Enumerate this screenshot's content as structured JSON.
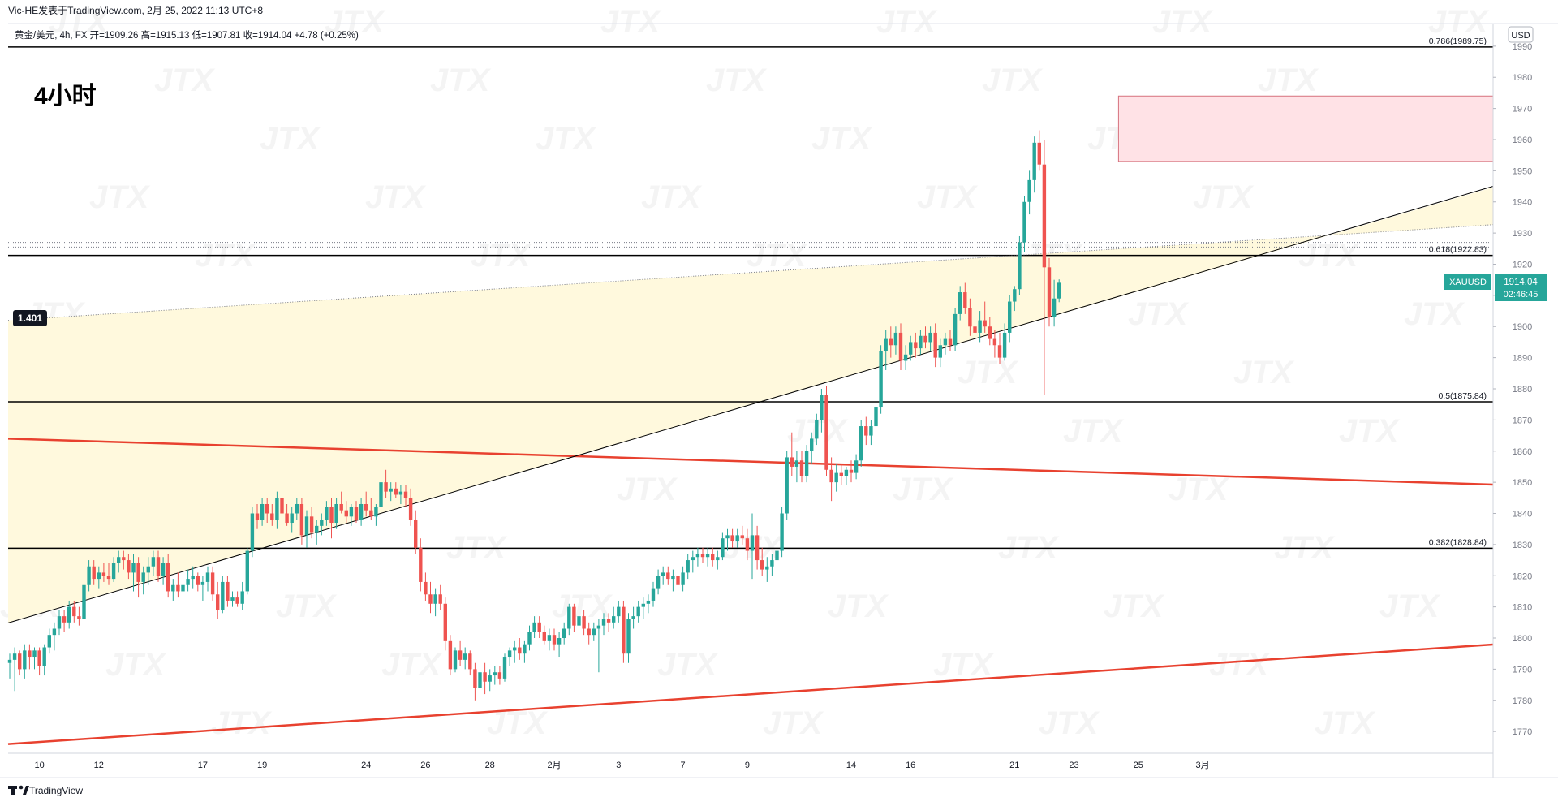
{
  "header": {
    "publisher": "Vic-HE发表于TradingView.com,  2月 25, 2022 11:13 UTC+8",
    "instrument_line": "黄金/美元, 4h, FX  开=1909.26  高=1915.13  低=1907.81  收=1914.04  +4.78 (+0.25%)"
  },
  "overlay": {
    "timeframe_label": "4小时",
    "watermark": "JTX"
  },
  "price_axis": {
    "currency": "USD"
  },
  "last_price": {
    "symbol": "XAUUSD",
    "price": "1914.04",
    "countdown": "02:46:45"
  },
  "footer": {
    "brand": "TradingView"
  },
  "colors": {
    "up": "#26a69a",
    "down": "#ef5350",
    "trendline_red": "#e8412f",
    "zone_fill": "#fff9dd",
    "supply_fill": "#ffe2e6",
    "supply_stroke": "#d6727d"
  },
  "chart_data": {
    "type": "candlestick",
    "title": "黄金/美元, 4h, FX",
    "ylim": [
      1763,
      1997
    ],
    "yticks": [
      1770,
      1780,
      1790,
      1800,
      1810,
      1820,
      1830,
      1840,
      1850,
      1860,
      1870,
      1880,
      1890,
      1900,
      1910,
      1920,
      1930,
      1940,
      1950,
      1960,
      1970,
      1980,
      1990
    ],
    "xticks": [
      {
        "label": "10",
        "x": 6
      },
      {
        "label": "12",
        "x": 18
      },
      {
        "label": "17",
        "x": 39
      },
      {
        "label": "19",
        "x": 51
      },
      {
        "label": "24",
        "x": 72
      },
      {
        "label": "26",
        "x": 84
      },
      {
        "label": "28",
        "x": 97
      },
      {
        "label": "2月",
        "x": 110
      },
      {
        "label": "3",
        "x": 123
      },
      {
        "label": "7",
        "x": 136
      },
      {
        "label": "9",
        "x": 149
      },
      {
        "label": "14",
        "x": 170
      },
      {
        "label": "16",
        "x": 182
      },
      {
        "label": "21",
        "x": 203
      },
      {
        "label": "23",
        "x": 215
      },
      {
        "label": "25",
        "x": 228
      },
      {
        "label": "3月",
        "x": 241
      }
    ],
    "fib_levels": [
      {
        "label": "0.786(1989.75)",
        "price": 1989.75
      },
      {
        "label": "0.618(1922.83)",
        "price": 1922.83
      },
      {
        "label": "0.5(1875.84)",
        "price": 1875.84
      },
      {
        "label": "0.382(1828.84)",
        "price": 1828.84
      }
    ],
    "flag_label": "1.401",
    "trendlines": [
      {
        "name": "upper_red",
        "from": {
          "x": 0,
          "y": 1864
        },
        "to": {
          "x": 244,
          "y": 1852
        }
      },
      {
        "name": "lower_red",
        "from": {
          "x": 0,
          "y": 1766
        },
        "to": {
          "x": 244,
          "y": 1792
        }
      },
      {
        "name": "rising_support",
        "from": {
          "x": 0,
          "y": 1805
        },
        "to": {
          "x": 244,
          "y": 1919
        }
      },
      {
        "name": "dotted_upper",
        "from": {
          "x": 0,
          "y": 1902
        },
        "to": {
          "x": 244,
          "y": 1927
        }
      }
    ],
    "horizontal_dotted": [
      1925.5,
      1927
    ],
    "supply_zone": {
      "x_start": 224,
      "x_end": 244,
      "y_low": 1953,
      "y_high": 1974
    },
    "candles": [
      [
        1792,
        1795,
        1787,
        1793
      ],
      [
        1793,
        1797,
        1783,
        1795
      ],
      [
        1795,
        1796,
        1788,
        1790
      ],
      [
        1790,
        1798,
        1787,
        1796
      ],
      [
        1796,
        1798,
        1790,
        1794
      ],
      [
        1794,
        1797,
        1790,
        1796
      ],
      [
        1796,
        1797,
        1788,
        1791
      ],
      [
        1791,
        1798,
        1788,
        1797
      ],
      [
        1797,
        1803,
        1795,
        1801
      ],
      [
        1801,
        1805,
        1796,
        1803
      ],
      [
        1803,
        1809,
        1801,
        1807
      ],
      [
        1807,
        1809,
        1802,
        1805
      ],
      [
        1805,
        1812,
        1803,
        1810
      ],
      [
        1810,
        1812,
        1805,
        1807
      ],
      [
        1807,
        1810,
        1804,
        1806
      ],
      [
        1806,
        1818,
        1805,
        1817
      ],
      [
        1817,
        1825,
        1815,
        1823
      ],
      [
        1823,
        1825,
        1817,
        1819
      ],
      [
        1819,
        1823,
        1816,
        1821
      ],
      [
        1821,
        1824,
        1818,
        1820
      ],
      [
        1820,
        1824,
        1817,
        1819
      ],
      [
        1819,
        1826,
        1818,
        1824
      ],
      [
        1824,
        1828,
        1821,
        1826
      ],
      [
        1826,
        1828,
        1822,
        1825
      ],
      [
        1825,
        1827,
        1819,
        1821
      ],
      [
        1821,
        1827,
        1815,
        1824
      ],
      [
        1824,
        1826,
        1813,
        1818
      ],
      [
        1818,
        1823,
        1814,
        1821
      ],
      [
        1821,
        1826,
        1817,
        1823
      ],
      [
        1823,
        1828,
        1820,
        1826
      ],
      [
        1826,
        1828,
        1818,
        1820
      ],
      [
        1820,
        1826,
        1817,
        1824
      ],
      [
        1824,
        1827,
        1813,
        1815
      ],
      [
        1815,
        1819,
        1812,
        1817
      ],
      [
        1817,
        1821,
        1813,
        1815
      ],
      [
        1815,
        1819,
        1812,
        1817
      ],
      [
        1817,
        1822,
        1815,
        1819
      ],
      [
        1819,
        1823,
        1816,
        1820
      ],
      [
        1820,
        1821,
        1815,
        1817
      ],
      [
        1817,
        1820,
        1812,
        1818
      ],
      [
        1818,
        1823,
        1815,
        1821
      ],
      [
        1821,
        1823,
        1812,
        1814
      ],
      [
        1814,
        1818,
        1806,
        1809
      ],
      [
        1809,
        1820,
        1808,
        1818
      ],
      [
        1818,
        1820,
        1810,
        1812
      ],
      [
        1812,
        1815,
        1810,
        1813
      ],
      [
        1813,
        1815,
        1810,
        1811
      ],
      [
        1811,
        1818,
        1809,
        1815
      ],
      [
        1815,
        1829,
        1814,
        1828
      ],
      [
        1828,
        1842,
        1826,
        1840
      ],
      [
        1840,
        1843,
        1835,
        1838
      ],
      [
        1838,
        1845,
        1836,
        1843
      ],
      [
        1843,
        1845,
        1837,
        1840
      ],
      [
        1840,
        1843,
        1836,
        1838
      ],
      [
        1838,
        1847,
        1835,
        1845
      ],
      [
        1845,
        1848,
        1838,
        1840
      ],
      [
        1840,
        1843,
        1836,
        1837
      ],
      [
        1837,
        1842,
        1834,
        1840
      ],
      [
        1840,
        1845,
        1838,
        1843
      ],
      [
        1843,
        1845,
        1830,
        1833
      ],
      [
        1833,
        1841,
        1829,
        1839
      ],
      [
        1839,
        1842,
        1832,
        1834
      ],
      [
        1834,
        1838,
        1830,
        1836
      ],
      [
        1836,
        1840,
        1833,
        1838
      ],
      [
        1838,
        1844,
        1836,
        1842
      ],
      [
        1842,
        1845,
        1832,
        1837
      ],
      [
        1837,
        1845,
        1835,
        1843
      ],
      [
        1843,
        1847,
        1840,
        1841
      ],
      [
        1841,
        1844,
        1837,
        1839
      ],
      [
        1839,
        1843,
        1836,
        1842
      ],
      [
        1842,
        1844,
        1837,
        1838
      ],
      [
        1838,
        1845,
        1836,
        1843
      ],
      [
        1843,
        1847,
        1839,
        1841
      ],
      [
        1841,
        1845,
        1838,
        1839
      ],
      [
        1839,
        1843,
        1836,
        1842
      ],
      [
        1842,
        1853,
        1840,
        1850
      ],
      [
        1850,
        1854,
        1845,
        1847
      ],
      [
        1847,
        1850,
        1844,
        1848
      ],
      [
        1848,
        1850,
        1845,
        1846
      ],
      [
        1846,
        1849,
        1843,
        1847
      ],
      [
        1847,
        1849,
        1842,
        1845
      ],
      [
        1845,
        1848,
        1836,
        1838
      ],
      [
        1838,
        1841,
        1827,
        1829
      ],
      [
        1829,
        1832,
        1815,
        1818
      ],
      [
        1818,
        1821,
        1812,
        1814
      ],
      [
        1814,
        1818,
        1808,
        1811
      ],
      [
        1811,
        1816,
        1807,
        1814
      ],
      [
        1814,
        1817,
        1809,
        1811
      ],
      [
        1811,
        1813,
        1796,
        1799
      ],
      [
        1799,
        1801,
        1788,
        1790
      ],
      [
        1790,
        1797,
        1789,
        1796
      ],
      [
        1796,
        1799,
        1791,
        1793
      ],
      [
        1793,
        1797,
        1790,
        1795
      ],
      [
        1795,
        1796,
        1788,
        1790
      ],
      [
        1790,
        1792,
        1780,
        1784
      ],
      [
        1784,
        1791,
        1781,
        1789
      ],
      [
        1789,
        1792,
        1782,
        1786
      ],
      [
        1786,
        1790,
        1783,
        1788
      ],
      [
        1788,
        1791,
        1785,
        1789
      ],
      [
        1789,
        1791,
        1785,
        1787
      ],
      [
        1787,
        1795,
        1786,
        1794
      ],
      [
        1794,
        1797,
        1791,
        1796
      ],
      [
        1796,
        1799,
        1792,
        1797
      ],
      [
        1797,
        1800,
        1793,
        1795
      ],
      [
        1795,
        1799,
        1792,
        1798
      ],
      [
        1798,
        1804,
        1796,
        1802
      ],
      [
        1802,
        1807,
        1800,
        1805
      ],
      [
        1805,
        1807,
        1800,
        1802
      ],
      [
        1802,
        1804,
        1798,
        1799
      ],
      [
        1799,
        1803,
        1796,
        1801
      ],
      [
        1801,
        1803,
        1796,
        1798
      ],
      [
        1798,
        1802,
        1794,
        1800
      ],
      [
        1800,
        1805,
        1798,
        1803
      ],
      [
        1803,
        1811,
        1801,
        1810
      ],
      [
        1810,
        1811,
        1802,
        1804
      ],
      [
        1804,
        1809,
        1802,
        1807
      ],
      [
        1807,
        1809,
        1801,
        1803
      ],
      [
        1803,
        1805,
        1798,
        1801
      ],
      [
        1801,
        1805,
        1799,
        1803
      ],
      [
        1803,
        1806,
        1789,
        1804
      ],
      [
        1804,
        1808,
        1801,
        1806
      ],
      [
        1806,
        1808,
        1802,
        1805
      ],
      [
        1805,
        1810,
        1803,
        1807
      ],
      [
        1807,
        1812,
        1805,
        1810
      ],
      [
        1810,
        1812,
        1792,
        1795
      ],
      [
        1795,
        1808,
        1792,
        1806
      ],
      [
        1806,
        1810,
        1803,
        1807
      ],
      [
        1807,
        1812,
        1805,
        1810
      ],
      [
        1810,
        1813,
        1806,
        1811
      ],
      [
        1811,
        1814,
        1808,
        1812
      ],
      [
        1812,
        1818,
        1810,
        1816
      ],
      [
        1816,
        1822,
        1814,
        1820
      ],
      [
        1820,
        1823,
        1817,
        1821
      ],
      [
        1821,
        1823,
        1817,
        1819
      ],
      [
        1819,
        1822,
        1815,
        1820
      ],
      [
        1820,
        1822,
        1816,
        1817
      ],
      [
        1817,
        1823,
        1815,
        1821
      ],
      [
        1821,
        1827,
        1819,
        1825
      ],
      [
        1825,
        1828,
        1821,
        1826
      ],
      [
        1826,
        1829,
        1823,
        1827
      ],
      [
        1827,
        1829,
        1824,
        1826
      ],
      [
        1826,
        1829,
        1823,
        1827
      ],
      [
        1827,
        1829,
        1823,
        1825
      ],
      [
        1825,
        1828,
        1822,
        1826
      ],
      [
        1826,
        1834,
        1825,
        1832
      ],
      [
        1832,
        1835,
        1828,
        1833
      ],
      [
        1833,
        1835,
        1829,
        1831
      ],
      [
        1831,
        1835,
        1829,
        1833
      ],
      [
        1833,
        1836,
        1830,
        1832
      ],
      [
        1832,
        1835,
        1825,
        1828
      ],
      [
        1828,
        1840,
        1819,
        1833
      ],
      [
        1833,
        1836,
        1822,
        1825
      ],
      [
        1825,
        1829,
        1820,
        1822
      ],
      [
        1822,
        1826,
        1818,
        1823
      ],
      [
        1823,
        1827,
        1820,
        1825
      ],
      [
        1825,
        1829,
        1822,
        1828
      ],
      [
        1828,
        1842,
        1826,
        1840
      ],
      [
        1840,
        1860,
        1838,
        1858
      ],
      [
        1858,
        1866,
        1852,
        1855
      ],
      [
        1855,
        1860,
        1850,
        1857
      ],
      [
        1857,
        1860,
        1850,
        1852
      ],
      [
        1852,
        1862,
        1850,
        1860
      ],
      [
        1860,
        1866,
        1856,
        1864
      ],
      [
        1864,
        1872,
        1862,
        1870
      ],
      [
        1870,
        1880,
        1866,
        1878
      ],
      [
        1878,
        1881,
        1852,
        1854
      ],
      [
        1854,
        1858,
        1844,
        1850
      ],
      [
        1850,
        1856,
        1847,
        1853
      ],
      [
        1853,
        1856,
        1849,
        1852
      ],
      [
        1852,
        1855,
        1849,
        1854
      ],
      [
        1854,
        1857,
        1850,
        1853
      ],
      [
        1853,
        1859,
        1851,
        1857
      ],
      [
        1857,
        1870,
        1855,
        1868
      ],
      [
        1868,
        1871,
        1862,
        1865
      ],
      [
        1865,
        1870,
        1862,
        1868
      ],
      [
        1868,
        1875,
        1866,
        1874
      ],
      [
        1874,
        1894,
        1872,
        1892
      ],
      [
        1892,
        1899,
        1886,
        1896
      ],
      [
        1896,
        1900,
        1890,
        1894
      ],
      [
        1894,
        1900,
        1891,
        1898
      ],
      [
        1898,
        1901,
        1886,
        1889
      ],
      [
        1889,
        1894,
        1886,
        1891
      ],
      [
        1891,
        1897,
        1889,
        1895
      ],
      [
        1895,
        1898,
        1890,
        1893
      ],
      [
        1893,
        1899,
        1891,
        1897
      ],
      [
        1897,
        1900,
        1893,
        1895
      ],
      [
        1895,
        1900,
        1892,
        1898
      ],
      [
        1898,
        1901,
        1887,
        1890
      ],
      [
        1890,
        1896,
        1887,
        1894
      ],
      [
        1894,
        1898,
        1891,
        1896
      ],
      [
        1896,
        1899,
        1892,
        1894
      ],
      [
        1894,
        1906,
        1892,
        1904
      ],
      [
        1904,
        1913,
        1902,
        1911
      ],
      [
        1911,
        1914,
        1904,
        1906
      ],
      [
        1906,
        1909,
        1897,
        1900
      ],
      [
        1900,
        1904,
        1892,
        1898
      ],
      [
        1898,
        1905,
        1895,
        1902
      ],
      [
        1902,
        1908,
        1898,
        1900
      ],
      [
        1900,
        1903,
        1894,
        1896
      ],
      [
        1896,
        1899,
        1890,
        1894
      ],
      [
        1894,
        1898,
        1888,
        1890
      ],
      [
        1890,
        1901,
        1889,
        1898
      ],
      [
        1898,
        1910,
        1895,
        1908
      ],
      [
        1908,
        1913,
        1905,
        1912
      ],
      [
        1912,
        1929,
        1910,
        1927
      ],
      [
        1927,
        1942,
        1924,
        1940
      ],
      [
        1940,
        1950,
        1936,
        1947
      ],
      [
        1947,
        1961,
        1943,
        1959
      ],
      [
        1959,
        1963,
        1950,
        1952
      ],
      [
        1952,
        1960,
        1878,
        1919
      ],
      [
        1919,
        1922,
        1900,
        1903
      ],
      [
        1903,
        1915,
        1900,
        1909
      ],
      [
        1909,
        1915.13,
        1907.81,
        1914.04
      ]
    ]
  }
}
